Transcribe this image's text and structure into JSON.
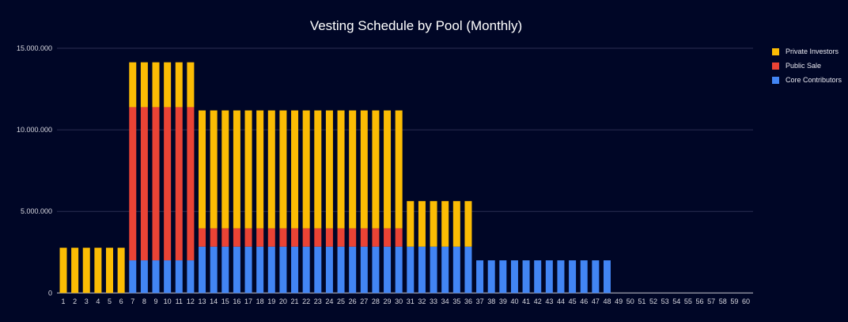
{
  "chart_data": {
    "type": "bar",
    "stacked": true,
    "title": "Vesting Schedule by Pool (Monthly)",
    "xlabel": "",
    "ylabel": "",
    "ylim": [
      0,
      15000000
    ],
    "yticks": [
      0,
      5000000,
      10000000,
      15000000
    ],
    "ytick_labels": [
      "0",
      "5.000.000",
      "10.000.000",
      "15.000.000"
    ],
    "grid": true,
    "legend_position": "right",
    "categories": [
      "1",
      "2",
      "3",
      "4",
      "5",
      "6",
      "7",
      "8",
      "9",
      "10",
      "11",
      "12",
      "13",
      "14",
      "15",
      "16",
      "17",
      "18",
      "19",
      "20",
      "21",
      "22",
      "23",
      "24",
      "25",
      "26",
      "27",
      "28",
      "29",
      "30",
      "31",
      "32",
      "33",
      "34",
      "35",
      "36",
      "37",
      "38",
      "39",
      "40",
      "41",
      "42",
      "43",
      "44",
      "45",
      "46",
      "47",
      "48",
      "49",
      "50",
      "51",
      "52",
      "53",
      "54",
      "55",
      "56",
      "57",
      "58",
      "59",
      "60"
    ],
    "series": [
      {
        "name": "Core Contributors",
        "color": "#4285f4",
        "values": [
          0,
          0,
          0,
          0,
          0,
          0,
          2000000,
          2000000,
          2000000,
          2000000,
          2000000,
          2000000,
          2840000,
          2840000,
          2840000,
          2840000,
          2840000,
          2840000,
          2840000,
          2840000,
          2840000,
          2840000,
          2840000,
          2840000,
          2840000,
          2840000,
          2840000,
          2840000,
          2840000,
          2840000,
          2840000,
          2840000,
          2840000,
          2840000,
          2840000,
          2840000,
          2000000,
          2000000,
          2000000,
          2000000,
          2000000,
          2000000,
          2000000,
          2000000,
          2000000,
          2000000,
          2000000,
          2000000,
          0,
          0,
          0,
          0,
          0,
          0,
          0,
          0,
          0,
          0,
          0,
          0
        ]
      },
      {
        "name": "Public Sale",
        "color": "#ea4335",
        "values": [
          0,
          0,
          0,
          0,
          0,
          0,
          9390000,
          9390000,
          9390000,
          9390000,
          9390000,
          9390000,
          1120000,
          1120000,
          1120000,
          1120000,
          1120000,
          1120000,
          1120000,
          1120000,
          1120000,
          1120000,
          1120000,
          1120000,
          1120000,
          1120000,
          1120000,
          1120000,
          1120000,
          1120000,
          0,
          0,
          0,
          0,
          0,
          0,
          0,
          0,
          0,
          0,
          0,
          0,
          0,
          0,
          0,
          0,
          0,
          0,
          0,
          0,
          0,
          0,
          0,
          0,
          0,
          0,
          0,
          0,
          0,
          0
        ]
      },
      {
        "name": "Private Investors",
        "color": "#fbbc04",
        "values": [
          2770000,
          2770000,
          2770000,
          2770000,
          2770000,
          2770000,
          2750000,
          2750000,
          2750000,
          2750000,
          2750000,
          2750000,
          7230000,
          7230000,
          7230000,
          7230000,
          7230000,
          7230000,
          7230000,
          7230000,
          7230000,
          7230000,
          7230000,
          7230000,
          7230000,
          7230000,
          7230000,
          7230000,
          7230000,
          7230000,
          2790000,
          2790000,
          2790000,
          2790000,
          2790000,
          2790000,
          0,
          0,
          0,
          0,
          0,
          0,
          0,
          0,
          0,
          0,
          0,
          0,
          0,
          0,
          0,
          0,
          0,
          0,
          0,
          0,
          0,
          0,
          0,
          0
        ]
      }
    ],
    "legend_order": [
      "Private Investors",
      "Public Sale",
      "Core Contributors"
    ]
  }
}
